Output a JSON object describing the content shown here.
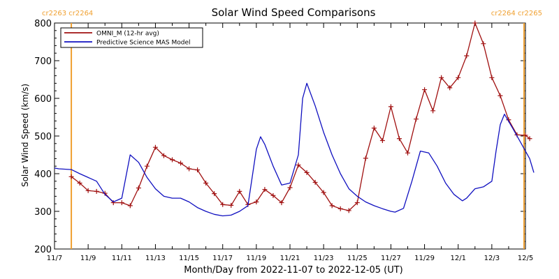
{
  "chart_data": {
    "type": "line",
    "title": "Solar Wind Speed Comparisons",
    "xlabel": "Month/Day from 2022-11-07 to 2022-12-05 (UT)",
    "ylabel": "Solar Wind Speed (km/s)",
    "xlim": [
      "2022-11-07",
      "2022-12-05"
    ],
    "ylim": [
      200,
      800
    ],
    "y_ticks": [
      200,
      300,
      400,
      500,
      600,
      700,
      800
    ],
    "x_ticks": [
      {
        "date": "2022-11-07",
        "label": "11/7"
      },
      {
        "date": "2022-11-09",
        "label": "11/9"
      },
      {
        "date": "2022-11-11",
        "label": "11/11"
      },
      {
        "date": "2022-11-13",
        "label": "11/13"
      },
      {
        "date": "2022-11-15",
        "label": "11/15"
      },
      {
        "date": "2022-11-17",
        "label": "11/17"
      },
      {
        "date": "2022-11-19",
        "label": "11/19"
      },
      {
        "date": "2022-11-21",
        "label": "11/21"
      },
      {
        "date": "2022-11-23",
        "label": "11/23"
      },
      {
        "date": "2022-11-25",
        "label": "11/25"
      },
      {
        "date": "2022-11-27",
        "label": "11/27"
      },
      {
        "date": "2022-11-29",
        "label": "11/29"
      },
      {
        "date": "2022-12-01",
        "label": "12/1"
      },
      {
        "date": "2022-12-03",
        "label": "12/3"
      },
      {
        "date": "2022-12-05",
        "label": "12/5"
      }
    ],
    "legend": "top-left",
    "grid": false,
    "carrington_markers": [
      {
        "date": "2022-11-08 00:00",
        "label": "cr2263 cr2264",
        "position": "left",
        "color": "#f0a030"
      },
      {
        "date": "2022-12-04 22:00",
        "label": "cr2264 cr2265",
        "position": "right",
        "color": "#f0a030"
      }
    ],
    "series": [
      {
        "name": "OMNI_M (12-hr avg)",
        "color": "#a01010",
        "marker": "plus",
        "points": [
          [
            "2022-11-08 00:00",
            392
          ],
          [
            "2022-11-08 12:00",
            375
          ],
          [
            "2022-11-09 00:00",
            355
          ],
          [
            "2022-11-09 12:00",
            353
          ],
          [
            "2022-11-10 00:00",
            348
          ],
          [
            "2022-11-10 12:00",
            323
          ],
          [
            "2022-11-11 00:00",
            323
          ],
          [
            "2022-11-11 12:00",
            315
          ],
          [
            "2022-11-12 00:00",
            362
          ],
          [
            "2022-11-12 12:00",
            420
          ],
          [
            "2022-11-13 00:00",
            470
          ],
          [
            "2022-11-13 12:00",
            448
          ],
          [
            "2022-11-14 00:00",
            437
          ],
          [
            "2022-11-14 12:00",
            428
          ],
          [
            "2022-11-15 00:00",
            413
          ],
          [
            "2022-11-15 12:00",
            410
          ],
          [
            "2022-11-16 00:00",
            375
          ],
          [
            "2022-11-16 12:00",
            347
          ],
          [
            "2022-11-17 00:00",
            318
          ],
          [
            "2022-11-17 12:00",
            316
          ],
          [
            "2022-11-18 00:00",
            353
          ],
          [
            "2022-11-18 12:00",
            318
          ],
          [
            "2022-11-19 00:00",
            325
          ],
          [
            "2022-11-19 12:00",
            358
          ],
          [
            "2022-11-20 00:00",
            342
          ],
          [
            "2022-11-20 12:00",
            323
          ],
          [
            "2022-11-21 00:00",
            363
          ],
          [
            "2022-11-21 12:00",
            423
          ],
          [
            "2022-11-22 00:00",
            403
          ],
          [
            "2022-11-22 12:00",
            377
          ],
          [
            "2022-11-23 00:00",
            350
          ],
          [
            "2022-11-23 12:00",
            315
          ],
          [
            "2022-11-24 00:00",
            307
          ],
          [
            "2022-11-24 12:00",
            302
          ],
          [
            "2022-11-25 00:00",
            323
          ],
          [
            "2022-11-25 12:00",
            441
          ],
          [
            "2022-11-26 00:00",
            521
          ],
          [
            "2022-11-26 12:00",
            488
          ],
          [
            "2022-11-27 00:00",
            578
          ],
          [
            "2022-11-27 12:00",
            493
          ],
          [
            "2022-11-28 00:00",
            455
          ],
          [
            "2022-11-28 12:00",
            545
          ],
          [
            "2022-11-29 00:00",
            623
          ],
          [
            "2022-11-29 12:00",
            567
          ],
          [
            "2022-11-30 00:00",
            655
          ],
          [
            "2022-11-30 12:00",
            628
          ],
          [
            "2022-12-01 00:00",
            655
          ],
          [
            "2022-12-01 12:00",
            713
          ],
          [
            "2022-12-02 00:00",
            800
          ],
          [
            "2022-12-02 12:00",
            745
          ],
          [
            "2022-12-03 00:00",
            655
          ],
          [
            "2022-12-03 12:00",
            607
          ],
          [
            "2022-12-04 00:00",
            543
          ],
          [
            "2022-12-04 12:00",
            503
          ],
          [
            "2022-12-05 00:00",
            502
          ],
          [
            "2022-12-05 06:00",
            493
          ]
        ]
      },
      {
        "name": "Predictive Science MAS Model",
        "color": "#1010c0",
        "marker": "none",
        "points": [
          [
            "2022-11-07 00:00",
            415
          ],
          [
            "2022-11-07 06:00",
            413
          ],
          [
            "2022-11-08 00:00",
            411
          ],
          [
            "2022-11-08 12:00",
            400
          ],
          [
            "2022-11-09 00:00",
            390
          ],
          [
            "2022-11-09 12:00",
            380
          ],
          [
            "2022-11-10 00:00",
            345
          ],
          [
            "2022-11-10 12:00",
            325
          ],
          [
            "2022-11-11 00:00",
            335
          ],
          [
            "2022-11-11 12:00",
            450
          ],
          [
            "2022-11-12 00:00",
            430
          ],
          [
            "2022-11-12 12:00",
            390
          ],
          [
            "2022-11-13 00:00",
            360
          ],
          [
            "2022-11-13 12:00",
            340
          ],
          [
            "2022-11-14 00:00",
            335
          ],
          [
            "2022-11-14 12:00",
            335
          ],
          [
            "2022-11-15 00:00",
            325
          ],
          [
            "2022-11-15 12:00",
            310
          ],
          [
            "2022-11-16 00:00",
            300
          ],
          [
            "2022-11-16 12:00",
            292
          ],
          [
            "2022-11-17 00:00",
            288
          ],
          [
            "2022-11-17 12:00",
            290
          ],
          [
            "2022-11-18 00:00",
            300
          ],
          [
            "2022-11-18 12:00",
            315
          ],
          [
            "2022-11-19 00:00",
            465
          ],
          [
            "2022-11-19 06:00",
            498
          ],
          [
            "2022-11-19 12:00",
            478
          ],
          [
            "2022-11-20 00:00",
            420
          ],
          [
            "2022-11-20 12:00",
            370
          ],
          [
            "2022-11-21 00:00",
            375
          ],
          [
            "2022-11-21 12:00",
            450
          ],
          [
            "2022-11-21 18:00",
            600
          ],
          [
            "2022-11-22 00:00",
            640
          ],
          [
            "2022-11-22 12:00",
            580
          ],
          [
            "2022-11-23 00:00",
            510
          ],
          [
            "2022-11-23 12:00",
            450
          ],
          [
            "2022-11-24 00:00",
            400
          ],
          [
            "2022-11-24 12:00",
            360
          ],
          [
            "2022-11-25 00:00",
            340
          ],
          [
            "2022-11-25 12:00",
            325
          ],
          [
            "2022-11-26 00:00",
            315
          ],
          [
            "2022-11-26 12:00",
            307
          ],
          [
            "2022-11-27 00:00",
            300
          ],
          [
            "2022-11-27 06:00",
            298
          ],
          [
            "2022-11-27 18:00",
            308
          ],
          [
            "2022-11-28 06:00",
            380
          ],
          [
            "2022-11-28 18:00",
            460
          ],
          [
            "2022-11-29 06:00",
            455
          ],
          [
            "2022-11-29 18:00",
            420
          ],
          [
            "2022-11-30 06:00",
            375
          ],
          [
            "2022-11-30 18:00",
            345
          ],
          [
            "2022-12-01 06:00",
            328
          ],
          [
            "2022-12-01 12:00",
            335
          ],
          [
            "2022-12-02 00:00",
            360
          ],
          [
            "2022-12-02 12:00",
            365
          ],
          [
            "2022-12-03 00:00",
            380
          ],
          [
            "2022-12-03 06:00",
            460
          ],
          [
            "2022-12-03 12:00",
            530
          ],
          [
            "2022-12-03 18:00",
            558
          ],
          [
            "2022-12-04 06:00",
            520
          ],
          [
            "2022-12-04 18:00",
            480
          ],
          [
            "2022-12-05 06:00",
            440
          ],
          [
            "2022-12-05 12:00",
            403
          ]
        ]
      }
    ]
  }
}
